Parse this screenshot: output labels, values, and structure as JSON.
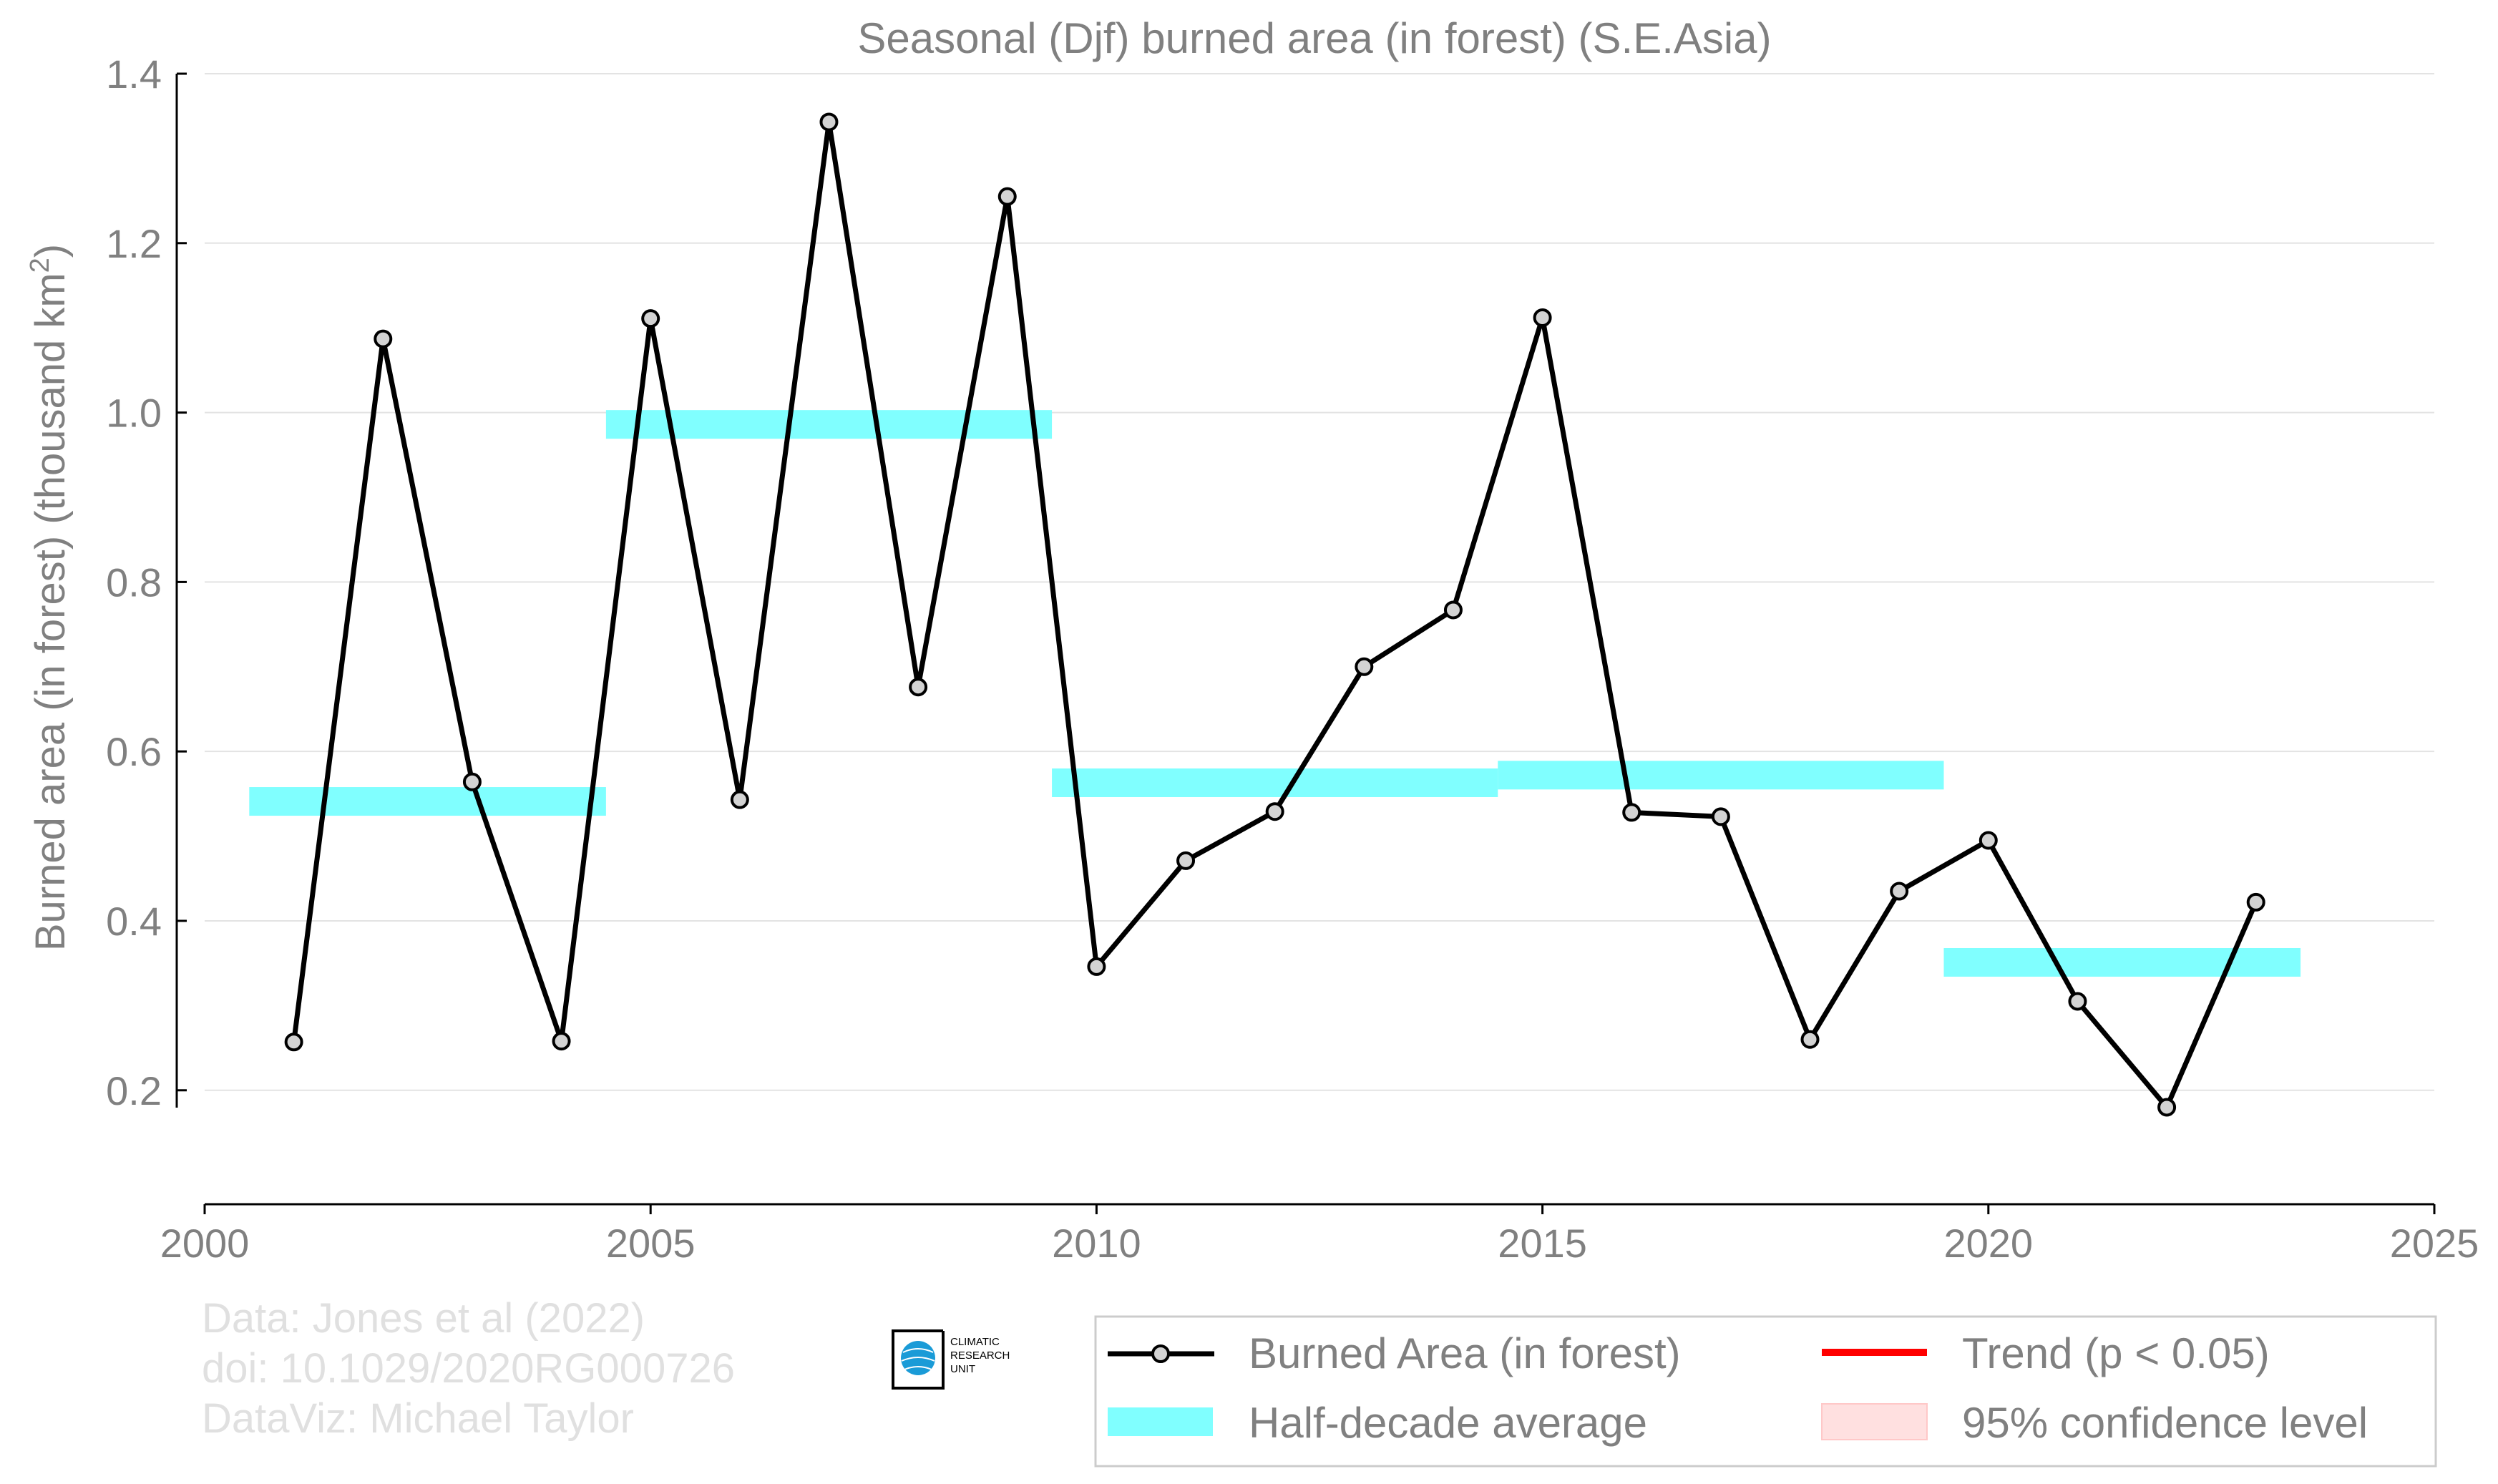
{
  "chart_data": {
    "type": "line",
    "title": "Seasonal (Djf) burned area (in forest) (S.E.Asia)",
    "ylabel_main": "Burned area (in forest) (thousand km",
    "ylabel_sup": "2",
    "ylabel_close": ")",
    "xlabel": "",
    "xlim": [
      2000,
      2025
    ],
    "ylim": [
      0.09,
      1.4
    ],
    "x_ticks": [
      "2000",
      "2005",
      "2010",
      "2015",
      "2020",
      "2025"
    ],
    "x_tick_values": [
      2000,
      2005,
      2010,
      2015,
      2020,
      2025
    ],
    "y_ticks": [
      "0.2",
      "0.4",
      "0.6",
      "0.8",
      "1.0",
      "1.2",
      "1.4"
    ],
    "y_tick_values": [
      0.2,
      0.4,
      0.6,
      0.8,
      1.0,
      1.2,
      1.4
    ],
    "grid": "horizontal",
    "series": [
      {
        "name": "Burned Area (in forest)",
        "color": "#000000",
        "marker_fill": "#d3d3d3",
        "x": [
          2001,
          2002,
          2003,
          2004,
          2005,
          2006,
          2007,
          2008,
          2009,
          2010,
          2011,
          2012,
          2013,
          2014,
          2015,
          2016,
          2017,
          2018,
          2019,
          2020,
          2021,
          2022,
          2023
        ],
        "y": [
          0.257,
          1.087,
          0.564,
          0.258,
          1.111,
          0.543,
          1.343,
          0.676,
          1.255,
          0.346,
          0.471,
          0.529,
          0.7,
          0.767,
          1.112,
          0.528,
          0.523,
          0.26,
          0.435,
          0.495,
          0.305,
          0.18,
          0.422
        ]
      }
    ],
    "half_decade_averages": {
      "name": "Half-decade average",
      "color": "#80ffff",
      "segments": [
        {
          "x_start": 2000.5,
          "x_end": 2004.5,
          "y": 0.541
        },
        {
          "x_start": 2004.5,
          "x_end": 2009.5,
          "y": 0.986
        },
        {
          "x_start": 2009.5,
          "x_end": 2014.5,
          "y": 0.563
        },
        {
          "x_start": 2014.5,
          "x_end": 2019.5,
          "y": 0.572
        },
        {
          "x_start": 2019.5,
          "x_end": 2023.5,
          "y": 0.351
        }
      ]
    },
    "legend": {
      "placement": "bottom-right",
      "entries": [
        {
          "label": "Burned Area (in forest)",
          "kind": "line-marker",
          "color": "#000000"
        },
        {
          "label": "Trend (p < 0.05)",
          "kind": "line",
          "color": "#ff0000"
        },
        {
          "label": "Half-decade average",
          "kind": "band",
          "color": "#80ffff"
        },
        {
          "label": "95% confidence level",
          "kind": "patch",
          "color": "#ffe0e0"
        }
      ]
    }
  },
  "credits": {
    "line1": "Data: Jones et al (2022)",
    "line2": "doi: 10.1029/2020RG000726",
    "line3": "DataViz: Michael Taylor"
  },
  "logo": {
    "line1": "CLIMATIC",
    "line2": "RESEARCH",
    "line3": "UNIT",
    "color": "#1a9bd7"
  }
}
